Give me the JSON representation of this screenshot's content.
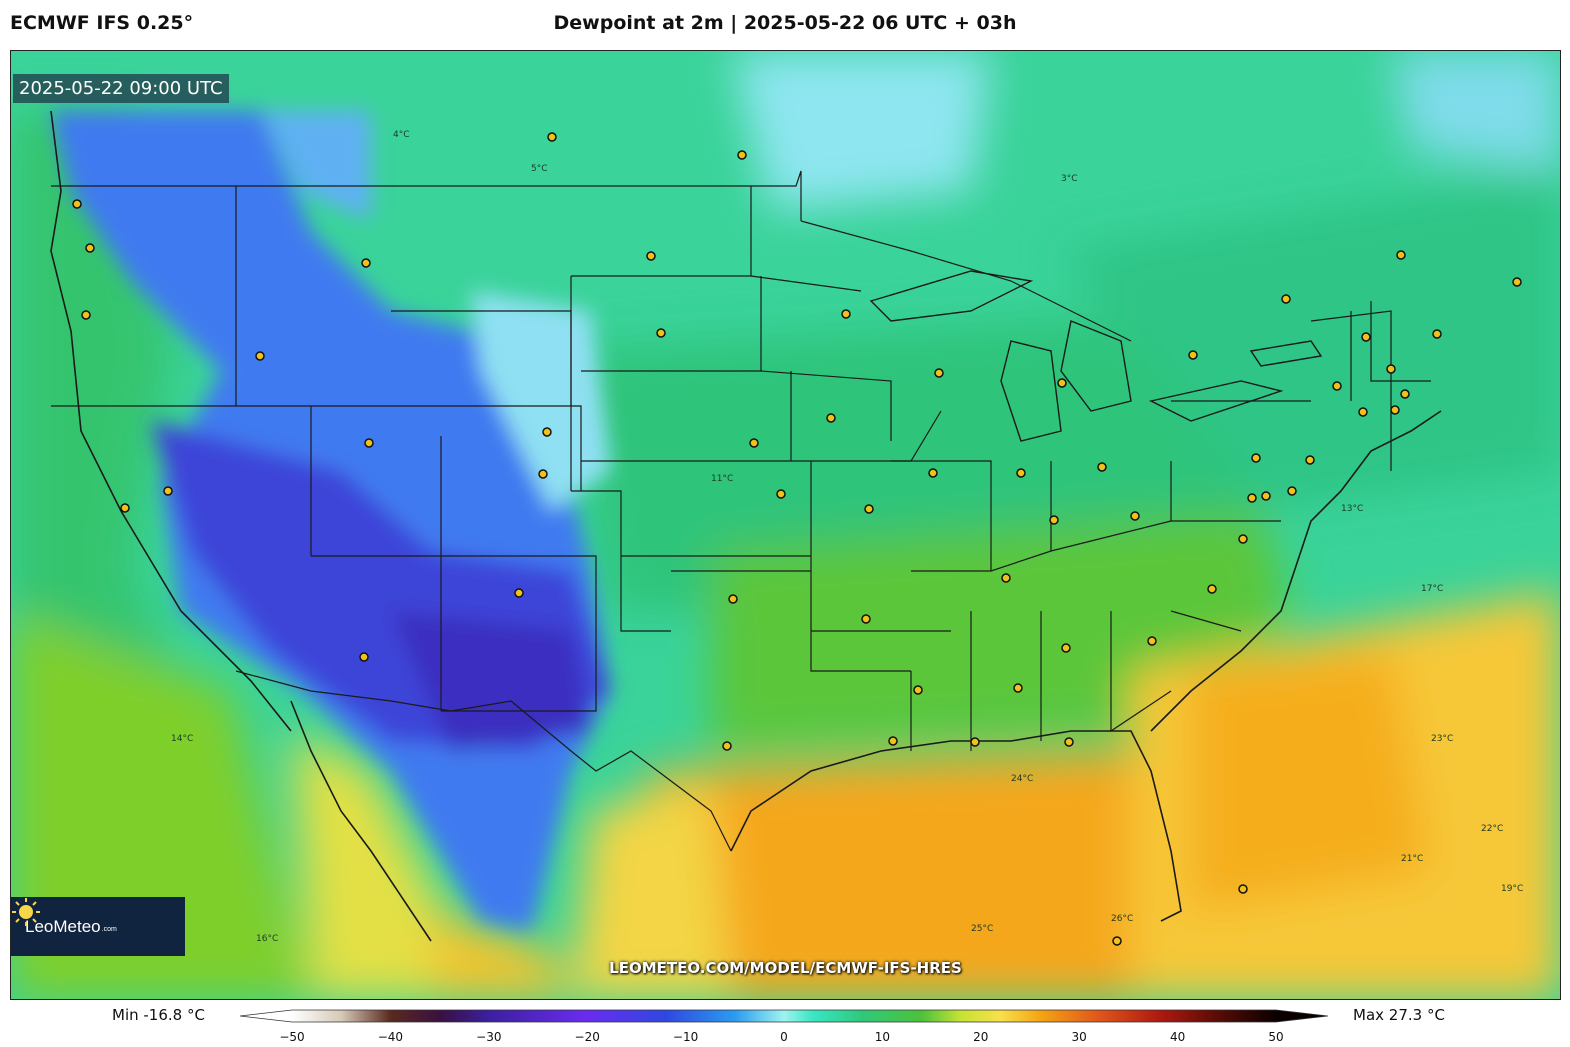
{
  "header": {
    "model": "ECMWF IFS 0.25°",
    "title": "Dewpoint at 2m | 2025-05-22 06 UTC + 03h"
  },
  "map": {
    "valid_time": "2025-05-22 09:00 UTC",
    "watermark_url": "LEOMETEO.COM/MODEL/ECMWF-IFS-HRES",
    "logo_text": "LeoMeteo",
    "logo_suffix": ".com",
    "contour_labels": [
      "4°C",
      "3°C",
      "5°C",
      "11°C",
      "13°C",
      "14°C",
      "16°C",
      "17°C",
      "19°C",
      "21°C",
      "22°C",
      "23°C",
      "24°C",
      "25°C",
      "26°C"
    ],
    "colors": {
      "very_dry": "#3a3fd8",
      "dry": "#3f7ff0",
      "cool": "#3fd39a",
      "mild": "#2ebf6a",
      "warm": "#8ad32a",
      "humid": "#f3d23a",
      "very_humid": "#f5a30e"
    }
  },
  "legend": {
    "min_label": "Min -16.8 °C",
    "max_label": "Max 27.3 °C",
    "ticks": [
      -50,
      -40,
      -30,
      -20,
      -10,
      0,
      10,
      20,
      30,
      40,
      50
    ],
    "range": [
      -50,
      50
    ],
    "stops": [
      {
        "v": -50,
        "c": "#ffffff"
      },
      {
        "v": -45,
        "c": "#d6c9b8"
      },
      {
        "v": -40,
        "c": "#5a2a1e"
      },
      {
        "v": -35,
        "c": "#3a1040"
      },
      {
        "v": -30,
        "c": "#3b1fa0"
      },
      {
        "v": -20,
        "c": "#6a2cf0"
      },
      {
        "v": -12,
        "c": "#2f48e0"
      },
      {
        "v": -5,
        "c": "#2a9cf0"
      },
      {
        "v": 0,
        "c": "#9ef3f0"
      },
      {
        "v": 3,
        "c": "#38e6c4"
      },
      {
        "v": 8,
        "c": "#2fc87a"
      },
      {
        "v": 14,
        "c": "#4dc23a"
      },
      {
        "v": 18,
        "c": "#c6e334"
      },
      {
        "v": 22,
        "c": "#f8e04a"
      },
      {
        "v": 26,
        "c": "#f5a514"
      },
      {
        "v": 32,
        "c": "#e0561a"
      },
      {
        "v": 38,
        "c": "#b01a10"
      },
      {
        "v": 44,
        "c": "#5a0c06"
      },
      {
        "v": 50,
        "c": "#0a0000"
      }
    ]
  }
}
